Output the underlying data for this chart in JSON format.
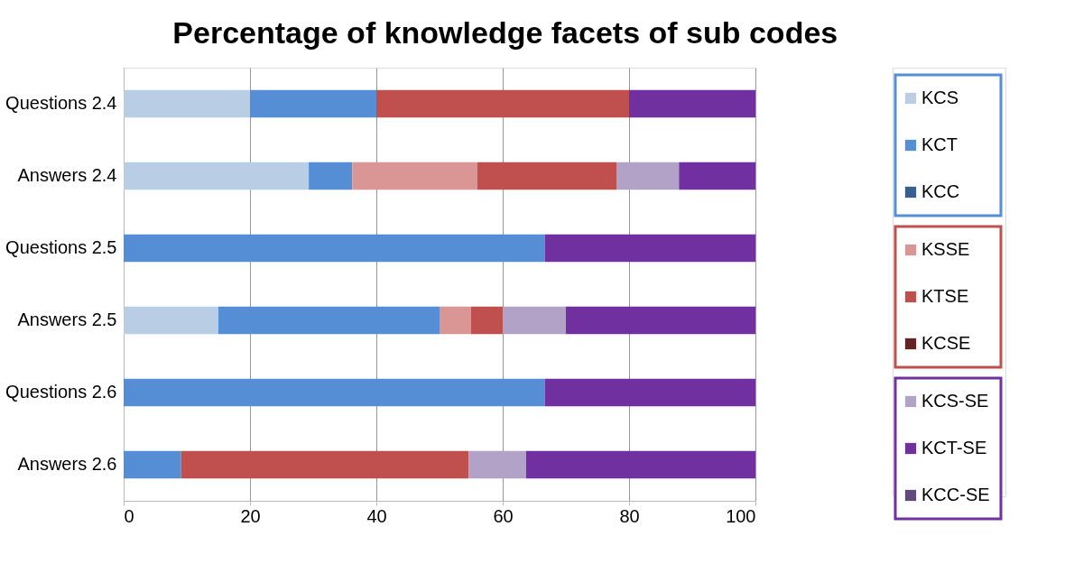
{
  "chart_data": {
    "type": "bar",
    "orientation": "horizontal",
    "stacked": true,
    "title": "Percentage of knowledge facets of sub codes",
    "categories": [
      "Questions 2.4",
      "Answers 2.4",
      "Questions 2.5",
      "Answers 2.5",
      "Questions 2.6",
      "Answers 2.6"
    ],
    "series": [
      {
        "name": "KCS",
        "color": "#b9cde5",
        "values": [
          20,
          29.3,
          0,
          15,
          0,
          0
        ]
      },
      {
        "name": "KCT",
        "color": "#558ed5",
        "values": [
          20,
          6.9,
          66.7,
          35,
          66.7,
          9.1
        ]
      },
      {
        "name": "KCC",
        "color": "#376092",
        "values": [
          0,
          0,
          0,
          0,
          0,
          0
        ]
      },
      {
        "name": "KSSE",
        "color": "#d99694",
        "values": [
          0,
          19.8,
          0,
          5,
          0,
          0
        ]
      },
      {
        "name": "KTSE",
        "color": "#c0504d",
        "values": [
          40,
          22,
          0,
          5,
          0,
          45.5
        ]
      },
      {
        "name": "KCSE",
        "color": "#632523",
        "values": [
          0,
          0,
          0,
          0,
          0,
          0
        ]
      },
      {
        "name": "KCS-SE",
        "color": "#b3a2c7",
        "values": [
          0,
          9.9,
          0,
          10,
          0,
          9.1
        ]
      },
      {
        "name": "KCT-SE",
        "color": "#7030a0",
        "values": [
          20,
          12.1,
          33.3,
          30,
          33.3,
          36.3
        ]
      },
      {
        "name": "KCC-SE",
        "color": "#604a7b",
        "values": [
          0,
          0,
          0,
          0,
          0,
          0
        ]
      }
    ],
    "xlim": [
      0,
      100
    ],
    "xticks": [
      0,
      20,
      40,
      60,
      80,
      100
    ],
    "grid": "x",
    "legend": "right"
  }
}
